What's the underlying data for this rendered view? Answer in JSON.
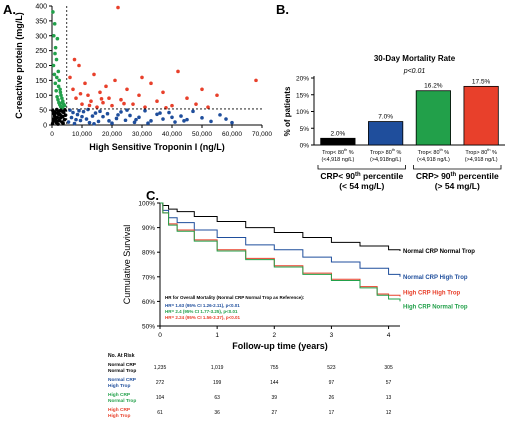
{
  "panel_labels": {
    "a": "A.",
    "b": "B.",
    "c": "C."
  },
  "colors": {
    "normal_normal": "#000000",
    "normal_high": "#1f4e9c",
    "high_normal": "#22a04a",
    "high_high": "#e8402b"
  },
  "chart_data": [
    {
      "type": "scatter",
      "panel": "A",
      "title": "",
      "xlabel": "High Sensitive Troponin I (ng/L)",
      "ylabel": "C-reactive protein (mg/L)",
      "x_ticks": [
        "0",
        "10,000",
        "20,000",
        "30,000",
        "40,000",
        "50,000",
        "60,000",
        "70,000"
      ],
      "y_ticks": [
        "0",
        "50",
        "100",
        "150",
        "200",
        "250",
        "300",
        "350",
        "400"
      ],
      "xlim": [
        0,
        70000
      ],
      "ylim": [
        0,
        400
      ],
      "thresholds": {
        "troponin_ng_per_l": 4918,
        "crp_mg_per_l": 54
      },
      "series": [
        {
          "name": "",
          "group": "normal_normal",
          "points": [
            [
              200,
              5
            ],
            [
              400,
              12
            ],
            [
              600,
              20
            ],
            [
              900,
              30
            ],
            [
              1200,
              40
            ],
            [
              1500,
              8
            ],
            [
              1800,
              25
            ],
            [
              2100,
              45
            ],
            [
              2400,
              15
            ],
            [
              2700,
              35
            ],
            [
              3000,
              50
            ],
            [
              3300,
              10
            ],
            [
              3600,
              28
            ],
            [
              3900,
              42
            ],
            [
              4200,
              18
            ],
            [
              4500,
              33
            ],
            [
              300,
              48
            ],
            [
              700,
              38
            ],
            [
              1100,
              22
            ],
            [
              1600,
              52
            ],
            [
              2000,
              3
            ],
            [
              2500,
              47
            ],
            [
              3100,
              30
            ],
            [
              3700,
              6
            ],
            [
              4300,
              51
            ],
            [
              800,
              44
            ],
            [
              1400,
              14
            ],
            [
              2200,
              36
            ],
            [
              2900,
              24
            ],
            [
              3500,
              46
            ]
          ]
        },
        {
          "name": "",
          "group": "normal_high",
          "points": [
            [
              5500,
              10
            ],
            [
              6500,
              25
            ],
            [
              7500,
              5
            ],
            [
              8500,
              35
            ],
            [
              9500,
              15
            ],
            [
              10500,
              45
            ],
            [
              11500,
              20
            ],
            [
              12500,
              8
            ],
            [
              13500,
              30
            ],
            [
              14500,
              40
            ],
            [
              15500,
              12
            ],
            [
              17000,
              28
            ],
            [
              18500,
              38
            ],
            [
              20000,
              6
            ],
            [
              21500,
              22
            ],
            [
              23000,
              44
            ],
            [
              24500,
              16
            ],
            [
              26000,
              32
            ],
            [
              27500,
              9
            ],
            [
              29000,
              26
            ],
            [
              31000,
              48
            ],
            [
              33000,
              14
            ],
            [
              35000,
              36
            ],
            [
              37000,
              20
            ],
            [
              39000,
              42
            ],
            [
              41000,
              10
            ],
            [
              43000,
              30
            ],
            [
              45000,
              18
            ],
            [
              47000,
              46
            ],
            [
              50000,
              24
            ],
            [
              53000,
              12
            ],
            [
              56000,
              34
            ],
            [
              58000,
              20
            ],
            [
              60000,
              8
            ],
            [
              6000,
              50
            ],
            [
              7000,
              42
            ],
            [
              8000,
              18
            ],
            [
              9000,
              48
            ],
            [
              10000,
              28
            ],
            [
              12000,
              52
            ],
            [
              14000,
              4
            ],
            [
              16000,
              46
            ],
            [
              19000,
              14
            ],
            [
              22000,
              34
            ],
            [
              25000,
              50
            ],
            [
              28000,
              18
            ],
            [
              32000,
              6
            ],
            [
              36000,
              40
            ],
            [
              40000,
              26
            ],
            [
              44000,
              14
            ]
          ]
        },
        {
          "name": "",
          "group": "high_normal",
          "points": [
            [
              300,
              380
            ],
            [
              600,
              300
            ],
            [
              900,
              340
            ],
            [
              1200,
              260
            ],
            [
              1500,
              220
            ],
            [
              1800,
              290
            ],
            [
              2100,
              180
            ],
            [
              2400,
              150
            ],
            [
              2700,
              120
            ],
            [
              3000,
              100
            ],
            [
              3300,
              90
            ],
            [
              3600,
              80
            ],
            [
              3900,
              70
            ],
            [
              4200,
              65
            ],
            [
              500,
              200
            ],
            [
              800,
              170
            ],
            [
              1100,
              140
            ],
            [
              1400,
              115
            ],
            [
              1700,
              95
            ],
            [
              2000,
              85
            ],
            [
              2300,
              75
            ],
            [
              2600,
              68
            ],
            [
              2900,
              62
            ],
            [
              3200,
              58
            ],
            [
              3500,
              60
            ],
            [
              1000,
              240
            ],
            [
              1600,
              160
            ],
            [
              2200,
              130
            ],
            [
              2800,
              110
            ],
            [
              3400,
              75
            ]
          ]
        },
        {
          "name": "",
          "group": "high_high",
          "points": [
            [
              6000,
              160
            ],
            [
              7000,
              120
            ],
            [
              8000,
              90
            ],
            [
              9000,
              200
            ],
            [
              10000,
              70
            ],
            [
              11000,
              140
            ],
            [
              12000,
              100
            ],
            [
              13000,
              80
            ],
            [
              14000,
              170
            ],
            [
              15000,
              60
            ],
            [
              16000,
              110
            ],
            [
              17000,
              75
            ],
            [
              18000,
              130
            ],
            [
              19000,
              90
            ],
            [
              20000,
              65
            ],
            [
              21000,
              150
            ],
            [
              22000,
              395
            ],
            [
              23000,
              85
            ],
            [
              25000,
              120
            ],
            [
              27000,
              70
            ],
            [
              29000,
              100
            ],
            [
              31000,
              60
            ],
            [
              33000,
              140
            ],
            [
              35000,
              80
            ],
            [
              37000,
              110
            ],
            [
              40000,
              65
            ],
            [
              42000,
              180
            ],
            [
              45000,
              90
            ],
            [
              48000,
              70
            ],
            [
              50000,
              120
            ],
            [
              52000,
              60
            ],
            [
              55000,
              100
            ],
            [
              68000,
              150
            ],
            [
              7500,
              220
            ],
            [
              9500,
              105
            ],
            [
              12500,
              66
            ],
            [
              16500,
              88
            ],
            [
              24000,
              72
            ],
            [
              30000,
              160
            ],
            [
              38000,
              58
            ]
          ]
        }
      ]
    },
    {
      "type": "bar",
      "panel": "B",
      "title": "30-Day Mortality Rate",
      "annotation": "p<0.01",
      "ylabel": "% of patients",
      "y_ticks": [
        "0%",
        "5%",
        "10%",
        "15%",
        "20%"
      ],
      "ylim": [
        0,
        20
      ],
      "categories": [
        {
          "line1": "Trop< 80",
          "sup": "th",
          "suffix": " %",
          "line2": "(<4,918 ng/L)"
        },
        {
          "line1": "Trop> 80",
          "sup": "th",
          "suffix": " %",
          "line2": "(>4,918ng/L)"
        },
        {
          "line1": "Trop< 80",
          "sup": "th",
          "suffix": " %",
          "line2": "(<4,918 ng/L)"
        },
        {
          "line1": "Trop> 80",
          "sup": "th",
          "suffix": " %",
          "line2": "(>4,918 ng/L)"
        }
      ],
      "values": [
        2.0,
        7.0,
        16.2,
        17.5
      ],
      "value_labels": [
        "2.0%",
        "7.0%",
        "16.2%",
        "17.5%"
      ],
      "bar_colors": [
        "#000000",
        "#1f4e9c",
        "#22a04a",
        "#e8402b"
      ],
      "groups": [
        {
          "line1": "CRP< 90",
          "sup": "th",
          "suffix": " percentile",
          "line2": "(< 54 mg/L)"
        },
        {
          "line1": "CRP> 90",
          "sup": "th",
          "suffix": " percentile",
          "line2": "(> 54 mg/L)"
        }
      ]
    },
    {
      "type": "line",
      "panel": "C",
      "title": "",
      "xlabel": "Follow-up time (years)",
      "ylabel": "Cumulative Survival",
      "x_ticks": [
        "0",
        "1",
        "2",
        "3",
        "4"
      ],
      "y_ticks": [
        "100%",
        "90%",
        "80%",
        "70%",
        "60%",
        "50%"
      ],
      "xlim": [
        0,
        4.2
      ],
      "ylim": [
        50,
        100
      ],
      "series": [
        {
          "name": "Normal CRP Normal Trop",
          "group": "normal_normal",
          "x": [
            0,
            0.05,
            0.15,
            0.3,
            0.6,
            1,
            1.5,
            2,
            2.5,
            3,
            3.5,
            4,
            4.2
          ],
          "y": [
            100,
            99,
            97.5,
            96.5,
            94.5,
            92.5,
            90,
            88,
            86,
            84,
            82.5,
            81,
            80.5
          ]
        },
        {
          "name": "Normal CRP High Trop",
          "group": "normal_high",
          "x": [
            0,
            0.05,
            0.15,
            0.3,
            0.6,
            1,
            1.5,
            2,
            2.5,
            3,
            3.5,
            4,
            4.2
          ],
          "y": [
            100,
            97,
            94,
            92,
            89,
            86,
            83,
            81,
            78,
            76,
            73.5,
            71,
            70
          ]
        },
        {
          "name": "High CRP High Trop",
          "group": "high_high",
          "x": [
            0,
            0.05,
            0.15,
            0.3,
            0.6,
            1,
            1.5,
            2,
            2.5,
            3,
            3.5,
            3.8,
            4,
            4.2
          ],
          "y": [
            100,
            96,
            91.5,
            89,
            85,
            81,
            77.5,
            74.5,
            71.5,
            69,
            66,
            63,
            62.5,
            62
          ]
        },
        {
          "name": "High CRP Normal Trop",
          "group": "high_normal",
          "x": [
            0,
            0.05,
            0.15,
            0.3,
            0.6,
            1,
            1.5,
            2,
            2.5,
            3,
            3.5,
            3.8,
            4,
            4.2
          ],
          "y": [
            100,
            96,
            91,
            88.5,
            84.5,
            80.5,
            77,
            74,
            71,
            68.5,
            65.5,
            62.5,
            61,
            60
          ]
        }
      ],
      "hr_box": {
        "title": "HR for Overall Mortality (Normal CRP Normal Trop as Reference):",
        "lines": [
          {
            "text": "HR= 1.63 (95% CI 1.26-2.11), p<0.01",
            "group": "normal_high"
          },
          {
            "text": "HR= 2.4 (95% CI 1.77-3.25), p<0.01",
            "group": "high_normal"
          },
          {
            "text": "HR= 2.24 (95% CI 1.56-3.37), p<0.01",
            "group": "high_high"
          }
        ]
      },
      "at_risk": {
        "header": "No. At Risk",
        "rows": [
          {
            "label1": "Normal CRP",
            "label2": "Normal Trop",
            "group": "normal_normal",
            "values": [
              "1,235",
              "1,019",
              "755",
              "523",
              "305"
            ]
          },
          {
            "label1": "Normal CRP",
            "label2": "High Trop",
            "group": "normal_high",
            "values": [
              "272",
              "199",
              "144",
              "97",
              "57"
            ]
          },
          {
            "label1": "High CRP",
            "label2": "Normal Trop",
            "group": "high_normal",
            "values": [
              "104",
              "63",
              "39",
              "26",
              "13"
            ]
          },
          {
            "label1": "High CRP",
            "label2": "High Trop",
            "group": "high_high",
            "values": [
              "61",
              "36",
              "27",
              "17",
              "12"
            ]
          }
        ]
      }
    }
  ]
}
